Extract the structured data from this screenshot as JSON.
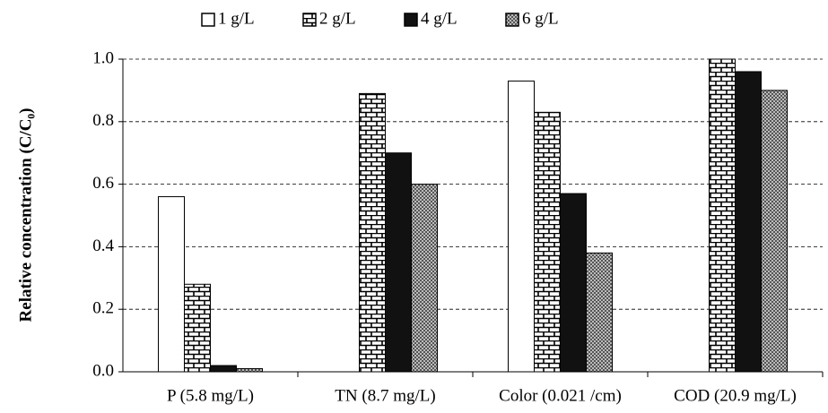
{
  "chart_data": {
    "type": "bar",
    "y_label": "Relative concentration (C/C₀)",
    "categories": [
      "P (5.8 mg/L)",
      "TN (8.7 mg/L)",
      "Color (0.021 /cm)",
      "COD (20.9 mg/L)"
    ],
    "series": [
      {
        "name": "1 g/L",
        "color": "#ffffff",
        "fill": "hollow",
        "values": [
          0.56,
          null,
          0.93,
          null
        ]
      },
      {
        "name": "2 g/L",
        "color": "#ffffff",
        "fill": "brick",
        "values": [
          0.28,
          0.89,
          0.83,
          1.0
        ]
      },
      {
        "name": "4 g/L",
        "color": "#111111",
        "fill": "solid",
        "values": [
          0.02,
          0.7,
          0.57,
          0.96
        ]
      },
      {
        "name": "6 g/L",
        "color": "#888888",
        "fill": "checker",
        "values": [
          0.01,
          0.6,
          0.38,
          0.9
        ]
      }
    ],
    "ylim": [
      0,
      1.0
    ],
    "yticks": [
      {
        "value": 0,
        "label": "0.0"
      },
      0.2,
      0.4,
      0.6,
      0.8,
      {
        "value": 1.0,
        "label": "1.0"
      }
    ],
    "grid": true,
    "legend": "top"
  }
}
